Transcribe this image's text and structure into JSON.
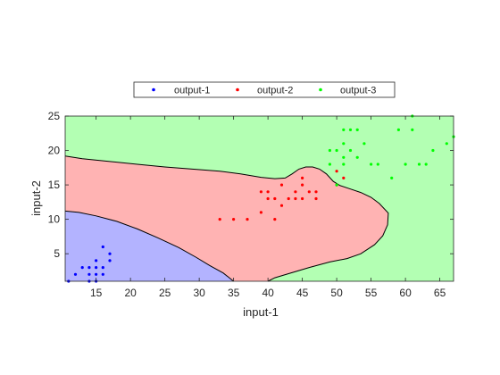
{
  "chart_data": {
    "type": "scatter",
    "title": "",
    "xlabel": "input-1",
    "ylabel": "input-2",
    "xlim": [
      10.5,
      67
    ],
    "ylim": [
      1,
      25
    ],
    "xticks": [
      15,
      20,
      25,
      30,
      35,
      40,
      45,
      50,
      55,
      60,
      65
    ],
    "yticks": [
      5,
      10,
      15,
      20,
      25
    ],
    "grid": false,
    "legend_position": "top-center, horizontal, outside plot",
    "regions": [
      {
        "name": "output-3",
        "color": "#b3ffb3"
      },
      {
        "name": "output-2",
        "color": "#ffb3b3"
      },
      {
        "name": "output-1",
        "color": "#b3b3ff"
      }
    ],
    "boundary_outer": [
      [
        10.5,
        19.2
      ],
      [
        13,
        18.8
      ],
      [
        17,
        18.4
      ],
      [
        21,
        18.0
      ],
      [
        25,
        17.6
      ],
      [
        29,
        17.3
      ],
      [
        33,
        17.0
      ],
      [
        36,
        16.6
      ],
      [
        39,
        16.1
      ],
      [
        41,
        15.9
      ],
      [
        42.5,
        16.0
      ],
      [
        43.5,
        16.6
      ],
      [
        44.5,
        17.3
      ],
      [
        45.5,
        17.6
      ],
      [
        46.5,
        17.6
      ],
      [
        47.5,
        17.3
      ],
      [
        48.5,
        16.6
      ],
      [
        49.5,
        15.5
      ],
      [
        50.5,
        14.9
      ],
      [
        52,
        14.4
      ],
      [
        53.5,
        13.9
      ],
      [
        55,
        13.2
      ],
      [
        56.2,
        12.3
      ],
      [
        57.5,
        10.9
      ],
      [
        57.4,
        9.2
      ],
      [
        56.7,
        7.6
      ],
      [
        55.5,
        6.3
      ],
      [
        53.5,
        5.0
      ],
      [
        51.5,
        4.3
      ],
      [
        49,
        3.8
      ],
      [
        46,
        3.0
      ],
      [
        43,
        2.1
      ],
      [
        41,
        1.5
      ],
      [
        40,
        1.0
      ]
    ],
    "boundary_inner": [
      [
        10.5,
        11.2
      ],
      [
        12.5,
        11.0
      ],
      [
        15,
        10.5
      ],
      [
        18,
        9.7
      ],
      [
        21,
        8.6
      ],
      [
        24,
        7.3
      ],
      [
        27,
        5.9
      ],
      [
        29.5,
        4.5
      ],
      [
        31.5,
        3.3
      ],
      [
        33.5,
        2.2
      ],
      [
        35,
        1.0
      ]
    ],
    "series": [
      {
        "name": "output-1",
        "color": "#0000ff",
        "points": [
          [
            11,
            1
          ],
          [
            12,
            2
          ],
          [
            13,
            3
          ],
          [
            14,
            3
          ],
          [
            14,
            2
          ],
          [
            14,
            1
          ],
          [
            15,
            1
          ],
          [
            15,
            2
          ],
          [
            15,
            3
          ],
          [
            15,
            4
          ],
          [
            16,
            2
          ],
          [
            16,
            3
          ],
          [
            16,
            6
          ],
          [
            17,
            4
          ],
          [
            17,
            5
          ]
        ]
      },
      {
        "name": "output-2",
        "color": "#ff0000",
        "points": [
          [
            33,
            10
          ],
          [
            35,
            10
          ],
          [
            37,
            10
          ],
          [
            39,
            11
          ],
          [
            39,
            14
          ],
          [
            40,
            13
          ],
          [
            40,
            14
          ],
          [
            41,
            10
          ],
          [
            41,
            13
          ],
          [
            42,
            12
          ],
          [
            42,
            15
          ],
          [
            43,
            13
          ],
          [
            44,
            13
          ],
          [
            44,
            14
          ],
          [
            45,
            13
          ],
          [
            45,
            16
          ],
          [
            45,
            15
          ],
          [
            46,
            14
          ],
          [
            47,
            13
          ],
          [
            47,
            14
          ],
          [
            50,
            17
          ],
          [
            50,
            15
          ],
          [
            51,
            16
          ]
        ]
      },
      {
        "name": "output-3",
        "color": "#00ff00",
        "points": [
          [
            49,
            18
          ],
          [
            49,
            20
          ],
          [
            50,
            20
          ],
          [
            50,
            15
          ],
          [
            51,
            19
          ],
          [
            51,
            18
          ],
          [
            51,
            21
          ],
          [
            51,
            23
          ],
          [
            52,
            23
          ],
          [
            52,
            20
          ],
          [
            53,
            19
          ],
          [
            53,
            23
          ],
          [
            54,
            21
          ],
          [
            55,
            18
          ],
          [
            56,
            18
          ],
          [
            58,
            16
          ],
          [
            59,
            23
          ],
          [
            60,
            18
          ],
          [
            61,
            25
          ],
          [
            61,
            23
          ],
          [
            62,
            18
          ],
          [
            63,
            18
          ],
          [
            64,
            20
          ],
          [
            66,
            21
          ],
          [
            67,
            22
          ]
        ]
      }
    ]
  }
}
